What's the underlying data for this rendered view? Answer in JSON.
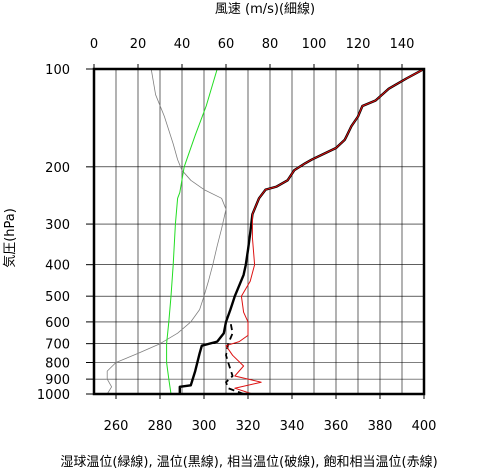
{
  "chart_data": {
    "type": "line",
    "title_top": "風速 (m/s)(細線)",
    "ylabel": "気圧(hPa)",
    "caption": "湿球温位(緑線), 温位(黒線), 相当温位(破線), 飽和相当温位(赤線)",
    "y_scale": "log",
    "ylim": [
      1000,
      100
    ],
    "y_ticks": [
      1000,
      900,
      800,
      700,
      600,
      500,
      400,
      300,
      200,
      100
    ],
    "xlim_bottom": [
      250,
      400
    ],
    "x_ticks_bottom": [
      260,
      280,
      300,
      320,
      340,
      360,
      380,
      400
    ],
    "xlim_top": [
      0,
      150
    ],
    "x_ticks_top": [
      0,
      20,
      40,
      60,
      80,
      100,
      120,
      140
    ],
    "series": [
      {
        "axis": "top",
        "color": "#808080",
        "style": "thin",
        "points": [
          [
            6,
            1000
          ],
          [
            8,
            950
          ],
          [
            6,
            900
          ],
          [
            6,
            850
          ],
          [
            10,
            800
          ],
          [
            20,
            750
          ],
          [
            30,
            700
          ],
          [
            38,
            650
          ],
          [
            44,
            600
          ],
          [
            48,
            550
          ],
          [
            50,
            500
          ],
          [
            52,
            450
          ],
          [
            54,
            400
          ],
          [
            56,
            350
          ],
          [
            58,
            310
          ],
          [
            60,
            270
          ],
          [
            58,
            250
          ],
          [
            50,
            235
          ],
          [
            44,
            220
          ],
          [
            40,
            205
          ],
          [
            38,
            190
          ],
          [
            36,
            170
          ],
          [
            32,
            140
          ],
          [
            28,
            120
          ],
          [
            26,
            100
          ]
        ]
      },
      {
        "axis": "bottom",
        "color": "#22dd22",
        "style": "solid",
        "points": [
          [
            285,
            1000
          ],
          [
            284,
            900
          ],
          [
            283,
            800
          ],
          [
            283,
            700
          ],
          [
            284,
            600
          ],
          [
            285,
            500
          ],
          [
            286,
            400
          ],
          [
            287,
            300
          ],
          [
            288,
            250
          ],
          [
            289,
            240
          ],
          [
            291,
            200
          ],
          [
            296,
            160
          ],
          [
            301,
            130
          ],
          [
            306,
            100
          ]
        ]
      },
      {
        "axis": "bottom",
        "color": "#000000",
        "style": "solid-bold",
        "points": [
          [
            289,
            1000
          ],
          [
            289,
            950
          ],
          [
            294,
            940
          ],
          [
            296,
            850
          ],
          [
            298,
            750
          ],
          [
            299,
            710
          ],
          [
            306,
            690
          ],
          [
            309,
            650
          ],
          [
            310,
            600
          ],
          [
            312,
            550
          ],
          [
            314,
            500
          ],
          [
            318,
            430
          ],
          [
            319,
            400
          ],
          [
            320,
            360
          ],
          [
            321,
            320
          ],
          [
            322,
            280
          ],
          [
            325,
            250
          ],
          [
            328,
            235
          ],
          [
            333,
            230
          ],
          [
            338,
            220
          ],
          [
            341,
            205
          ],
          [
            346,
            195
          ],
          [
            349,
            190
          ],
          [
            360,
            175
          ],
          [
            364,
            165
          ],
          [
            365,
            160
          ],
          [
            367,
            150
          ],
          [
            370,
            140
          ],
          [
            372,
            130
          ],
          [
            378,
            125
          ],
          [
            384,
            115
          ],
          [
            392,
            107
          ],
          [
            400,
            100
          ]
        ]
      },
      {
        "axis": "bottom",
        "color": "#000000",
        "style": "dashed",
        "points": [
          [
            318,
            1000
          ],
          [
            311,
            960
          ],
          [
            310,
            920
          ],
          [
            313,
            880
          ],
          [
            311,
            800
          ],
          [
            310,
            760
          ],
          [
            311,
            700
          ],
          [
            313,
            650
          ],
          [
            312,
            600
          ]
        ]
      },
      {
        "axis": "bottom",
        "color": "#dd1111",
        "style": "solid",
        "points": [
          [
            322,
            1000
          ],
          [
            314,
            960
          ],
          [
            326,
            920
          ],
          [
            314,
            880
          ],
          [
            318,
            820
          ],
          [
            313,
            760
          ],
          [
            310,
            710
          ],
          [
            316,
            690
          ],
          [
            320,
            660
          ],
          [
            320,
            600
          ],
          [
            318,
            560
          ],
          [
            317,
            500
          ],
          [
            321,
            450
          ],
          [
            323,
            400
          ],
          [
            322,
            330
          ],
          [
            322,
            280
          ],
          [
            325,
            250
          ],
          [
            328,
            235
          ],
          [
            333,
            230
          ],
          [
            338,
            220
          ],
          [
            341,
            205
          ],
          [
            346,
            195
          ],
          [
            349,
            190
          ],
          [
            360,
            175
          ],
          [
            364,
            165
          ],
          [
            365,
            160
          ],
          [
            367,
            150
          ],
          [
            370,
            140
          ],
          [
            372,
            130
          ],
          [
            378,
            125
          ],
          [
            384,
            115
          ],
          [
            392,
            107
          ],
          [
            400,
            100
          ]
        ]
      }
    ]
  }
}
